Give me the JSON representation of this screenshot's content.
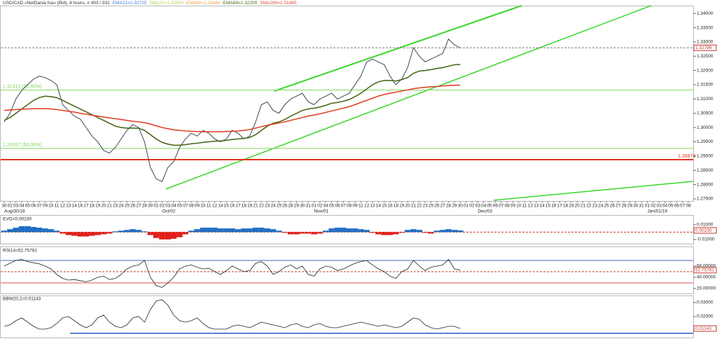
{
  "chart_data": [
    {
      "type": "line",
      "categories": [
        "30",
        "02",
        "03",
        "04",
        "05",
        "06",
        "07",
        "09",
        "10",
        "11",
        "12",
        "13",
        "14",
        "16",
        "17",
        "18",
        "19",
        "20",
        "21",
        "23",
        "24",
        "25",
        "26",
        "27",
        "28",
        "30",
        "01",
        "02",
        "03",
        "04",
        "05",
        "07",
        "08",
        "09",
        "10",
        "11",
        "12",
        "14",
        "15",
        "16",
        "17",
        "18",
        "19",
        "21",
        "22",
        "23",
        "24",
        "25",
        "26",
        "28",
        "29",
        "30",
        "31",
        "01",
        "02",
        "04",
        "05",
        "06",
        "07",
        "08",
        "09",
        "11",
        "12",
        "13",
        "14",
        "15",
        "16",
        "18",
        "19",
        "20",
        "21",
        "22",
        "23",
        "25",
        "26",
        "27",
        "28",
        "29",
        "30",
        "01",
        "02",
        "03",
        "04",
        "05",
        "06",
        "07",
        "08",
        "09",
        "10",
        "11",
        "12",
        "13",
        "14",
        "15",
        "16",
        "17",
        "18",
        "19",
        "20",
        "21",
        "22",
        "23",
        "24",
        "25",
        "26",
        "27",
        "28",
        "29",
        "30",
        "31",
        "01",
        "02",
        "03",
        "04",
        "05",
        "06",
        "07",
        "08"
      ],
      "date_labels": [
        "Aug/30/18",
        "Oct/02",
        "Nov/01",
        "Dec/03",
        "Jan/01/19"
      ],
      "indicators": [
        {
          "name": "EMA21=1.32725",
          "color": "#3a78d8"
        },
        {
          "name": "SMA10=1.32858",
          "color": "#b7d65a"
        },
        {
          "name": "EMA50=1.32440",
          "color": "#f0a040"
        }
      ],
      "series": [
        {
          "name": "USD/CAD «NetDania fxa» (Bid), 4 hours, # 403 / 932",
          "color": "#3b4654",
          "values": [
            1.302,
            1.305,
            1.31,
            1.313,
            1.315,
            1.317,
            1.318,
            1.3175,
            1.3165,
            1.315,
            1.308,
            1.306,
            1.304,
            1.303,
            1.3,
            1.297,
            1.295,
            1.292,
            1.291,
            1.293,
            1.296,
            1.299,
            1.301,
            1.3,
            1.295,
            1.286,
            1.282,
            1.281,
            1.286,
            1.288,
            1.293,
            1.296,
            1.298,
            1.297,
            1.299,
            1.298,
            1.296,
            1.295,
            1.296,
            1.299,
            1.298,
            1.296,
            1.297,
            1.302,
            1.308,
            1.309,
            1.306,
            1.305,
            1.308,
            1.31,
            1.311,
            1.312,
            1.309,
            1.308,
            1.31,
            1.311,
            1.312,
            1.31,
            1.311,
            1.312,
            1.315,
            1.318,
            1.323,
            1.324,
            1.323,
            1.322,
            1.318,
            1.315,
            1.317,
            1.321,
            1.328,
            1.325,
            1.323,
            1.324,
            1.325,
            1.326,
            1.331,
            1.329,
            1.32796,
            null,
            null,
            null,
            null,
            null,
            null,
            null,
            null,
            null,
            null,
            null,
            null,
            null,
            null,
            null,
            null,
            null,
            null,
            null,
            null,
            null,
            null,
            null,
            null,
            null,
            null,
            null,
            null,
            null,
            null,
            null,
            null,
            null,
            null,
            null,
            null,
            null,
            null,
            null
          ]
        },
        {
          "name": "EMA89=1.32209",
          "color": "#4b6a1e",
          "values": [
            1.3025,
            1.3035,
            1.305,
            1.3065,
            1.308,
            1.3095,
            1.3105,
            1.311,
            1.3108,
            1.3105,
            1.3095,
            1.3085,
            1.3075,
            1.3065,
            1.3055,
            1.3045,
            1.3035,
            1.3025,
            1.3015,
            1.3005,
            1.3,
            1.2998,
            1.2998,
            1.2997,
            1.299,
            1.2975,
            1.296,
            1.2948,
            1.2942,
            1.2938,
            1.2938,
            1.294,
            1.2943,
            1.2945,
            1.2948,
            1.295,
            1.2952,
            1.2953,
            1.2955,
            1.2958,
            1.296,
            1.2962,
            1.2965,
            1.2975,
            1.299,
            1.3005,
            1.3015,
            1.302,
            1.3028,
            1.304,
            1.305,
            1.306,
            1.3065,
            1.3068,
            1.3072,
            1.3078,
            1.3085,
            1.3088,
            1.3092,
            1.3098,
            1.3108,
            1.312,
            1.3135,
            1.315,
            1.316,
            1.3165,
            1.3165,
            1.3163,
            1.3168,
            1.3175,
            1.319,
            1.3198,
            1.32,
            1.3203,
            1.3207,
            1.321,
            1.3215,
            1.322,
            1.32209,
            null,
            null,
            null,
            null,
            null,
            null,
            null,
            null,
            null,
            null,
            null,
            null,
            null,
            null,
            null,
            null,
            null,
            null,
            null,
            null,
            null,
            null,
            null,
            null,
            null,
            null,
            null,
            null,
            null,
            null,
            null,
            null,
            null,
            null,
            null,
            null,
            null,
            null,
            null
          ]
        },
        {
          "name": "SMA200=1.31485",
          "color": "#e0452c",
          "values": [
            1.306,
            1.3062,
            1.3063,
            1.3064,
            1.3065,
            1.3066,
            1.3066,
            1.3066,
            1.3065,
            1.3063,
            1.306,
            1.3057,
            1.3054,
            1.305,
            1.3047,
            1.3043,
            1.304,
            1.3037,
            1.3034,
            1.3031,
            1.3028,
            1.3025,
            1.3022,
            1.302,
            1.3017,
            1.3012,
            1.3006,
            1.3,
            1.2996,
            1.2992,
            1.299,
            1.2988,
            1.2987,
            1.2986,
            1.2985,
            1.2985,
            1.2985,
            1.2985,
            1.2986,
            1.2987,
            1.2988,
            1.299,
            1.2993,
            1.2998,
            1.3003,
            1.3008,
            1.3012,
            1.3016,
            1.302,
            1.3025,
            1.303,
            1.3035,
            1.304,
            1.3044,
            1.3048,
            1.3053,
            1.3058,
            1.3063,
            1.3068,
            1.3073,
            1.308,
            1.3088,
            1.3095,
            1.3103,
            1.311,
            1.3116,
            1.312,
            1.3124,
            1.3128,
            1.3132,
            1.3136,
            1.3139,
            1.3141,
            1.3143,
            1.3144,
            1.3146,
            1.3147,
            1.3148,
            1.31485,
            null,
            null,
            null,
            null,
            null,
            null,
            null,
            null,
            null,
            null,
            null,
            null,
            null,
            null,
            null,
            null,
            null,
            null,
            null,
            null,
            null,
            null,
            null,
            null,
            null,
            null,
            null,
            null,
            null,
            null,
            null,
            null,
            null,
            null,
            null,
            null,
            null,
            null,
            null
          ]
        }
      ],
      "ylim": [
        1.2745,
        1.3425
      ],
      "yticks": [
        {
          "value": 1.34,
          "label": "1.34000"
        },
        {
          "value": 1.335,
          "label": "1.33500"
        },
        {
          "value": 1.33,
          "label": "1.33000"
        },
        {
          "value": 1.325,
          "label": "1.32500"
        },
        {
          "value": 1.32,
          "label": "1.32000"
        },
        {
          "value": 1.315,
          "label": "1.31500"
        },
        {
          "value": 1.31,
          "label": "1.31000"
        },
        {
          "value": 1.305,
          "label": "1.30500"
        },
        {
          "value": 1.3,
          "label": "1.30000"
        },
        {
          "value": 1.295,
          "label": "1.29500"
        },
        {
          "value": 1.29,
          "label": "1.29000"
        },
        {
          "value": 1.285,
          "label": "1.28500"
        },
        {
          "value": 1.28,
          "label": "1.28000"
        },
        {
          "value": 1.275,
          "label": "1.27500"
        }
      ],
      "levels": [
        {
          "value": 1.31313,
          "label": "1.31313 (61.80%)",
          "color": "#7fd85c"
        },
        {
          "value": 1.29267,
          "label": "1.29267 (50.00%)",
          "color": "#7fd85c"
        },
        {
          "value": 1.28874,
          "label": "1.28874",
          "color": "#e3341a"
        }
      ],
      "current": {
        "value": 1.32796,
        "label": "1.32796",
        "color": "#c0392b"
      }
    },
    {
      "type": "bar",
      "title": "EVO=0.00230",
      "positive_color": "#1f6fc5",
      "negative_color": "#e0201b",
      "values": [
        0.002,
        0.004,
        0.006,
        0.008,
        0.008,
        0.007,
        0.006,
        0.005,
        0.004,
        0.002,
        -0.002,
        -0.004,
        -0.005,
        -0.006,
        -0.006,
        -0.005,
        -0.004,
        -0.003,
        -0.002,
        0.001,
        0.002,
        0.003,
        0.004,
        0.003,
        0.001,
        -0.004,
        -0.008,
        -0.01,
        -0.01,
        -0.009,
        -0.007,
        -0.003,
        0.002,
        0.004,
        0.006,
        0.006,
        0.006,
        0.005,
        0.005,
        0.005,
        0.004,
        0.005,
        0.005,
        0.006,
        0.006,
        0.005,
        0.004,
        0.002,
        -0.001,
        -0.003,
        -0.003,
        -0.002,
        -0.002,
        -0.003,
        -0.002,
        0.002,
        0.005,
        0.006,
        0.006,
        0.005,
        0.005,
        0.004,
        0.003,
        -0.001,
        -0.003,
        -0.004,
        -0.004,
        -0.003,
        -0.001,
        0.003,
        0.004,
        0.003,
        -0.001,
        -0.002,
        0.002,
        0.003,
        0.004,
        0.003,
        0.0023,
        null,
        null,
        null,
        null,
        null,
        null,
        null,
        null,
        null,
        null,
        null,
        null,
        null,
        null,
        null,
        null,
        null,
        null,
        null,
        null,
        null,
        null,
        null,
        null,
        null,
        null,
        null,
        null,
        null,
        null,
        null,
        null,
        null,
        null,
        null,
        null,
        null,
        null,
        null
      ],
      "ylim": [
        -0.0148,
        0.0214
      ],
      "yticks": [
        {
          "value": 0.01,
          "label": "0.01000"
        },
        {
          "value": -0.01,
          "label": "-0.01000"
        }
      ],
      "current": {
        "value": 0.0023,
        "label": "0.00230",
        "color": "#c0392b"
      }
    },
    {
      "type": "line",
      "title": "RSI14=52.75781",
      "color": "#222222",
      "values": [
        60,
        65,
        70,
        72,
        68,
        66,
        64,
        60,
        55,
        45,
        38,
        35,
        36,
        34,
        32,
        35,
        40,
        42,
        36,
        38,
        45,
        55,
        60,
        62,
        70,
        40,
        25,
        22,
        30,
        40,
        55,
        60,
        62,
        58,
        55,
        56,
        50,
        45,
        52,
        60,
        55,
        50,
        52,
        65,
        68,
        60,
        45,
        50,
        58,
        62,
        55,
        60,
        45,
        42,
        55,
        60,
        58,
        52,
        55,
        60,
        65,
        68,
        70,
        62,
        55,
        50,
        42,
        38,
        50,
        55,
        70,
        60,
        52,
        58,
        60,
        62,
        72,
        55,
        52.75781,
        null,
        null,
        null,
        null,
        null,
        null,
        null,
        null,
        null,
        null,
        null,
        null,
        null,
        null,
        null,
        null,
        null,
        null,
        null,
        null,
        null,
        null,
        null,
        null,
        null,
        null,
        null,
        null,
        null,
        null,
        null,
        null,
        null,
        null,
        null,
        null,
        null,
        null,
        null
      ],
      "ylim": [
        11.25,
        92.5
      ],
      "yticks": [
        {
          "value": 60,
          "label": "60.00000"
        },
        {
          "value": 40,
          "label": "40.00000"
        },
        {
          "value": 20,
          "label": "20.00000"
        }
      ],
      "levels": [
        {
          "value": 70,
          "color": "#3a6fb0"
        },
        {
          "value": 50,
          "color": "#c0392b"
        },
        {
          "value": 30,
          "color": "#e05050"
        }
      ],
      "current": {
        "value": 52.75781,
        "label": "52.75781",
        "color": "#c0392b"
      }
    },
    {
      "type": "line",
      "title": "BBW20,2=0.01143",
      "color": "#222222",
      "values": [
        0.013,
        0.014,
        0.017,
        0.019,
        0.016,
        0.013,
        0.011,
        0.011,
        0.012,
        0.015,
        0.019,
        0.02,
        0.017,
        0.014,
        0.012,
        0.014,
        0.019,
        0.021,
        0.016,
        0.013,
        0.012,
        0.014,
        0.019,
        0.02,
        0.016,
        0.025,
        0.031,
        0.032,
        0.028,
        0.021,
        0.017,
        0.016,
        0.017,
        0.019,
        0.015,
        0.012,
        0.011,
        0.011,
        0.011,
        0.013,
        0.014,
        0.013,
        0.012,
        0.014,
        0.016,
        0.015,
        0.014,
        0.013,
        0.012,
        0.014,
        0.015,
        0.013,
        0.012,
        0.014,
        0.015,
        0.013,
        0.012,
        0.012,
        0.013,
        0.014,
        0.015,
        0.016,
        0.015,
        0.014,
        0.013,
        0.014,
        0.013,
        0.012,
        0.013,
        0.016,
        0.019,
        0.018,
        0.014,
        0.012,
        0.011,
        0.012,
        0.013,
        0.013,
        0.01143,
        null,
        null,
        null,
        null,
        null,
        null,
        null,
        null,
        null,
        null,
        null,
        null,
        null,
        null,
        null,
        null,
        null,
        null,
        null,
        null,
        null,
        null,
        null,
        null,
        null,
        null,
        null,
        null,
        null,
        null,
        null,
        null,
        null,
        null,
        null,
        null,
        null,
        null,
        null
      ],
      "ylim": [
        0.0055,
        0.0345
      ],
      "yticks": [
        {
          "value": 0.03,
          "label": "0.03000"
        },
        {
          "value": 0.02,
          "label": "0.02000"
        }
      ],
      "current": {
        "value": 0.01143,
        "label": "0.01143",
        "color": "#c0392b"
      }
    }
  ]
}
